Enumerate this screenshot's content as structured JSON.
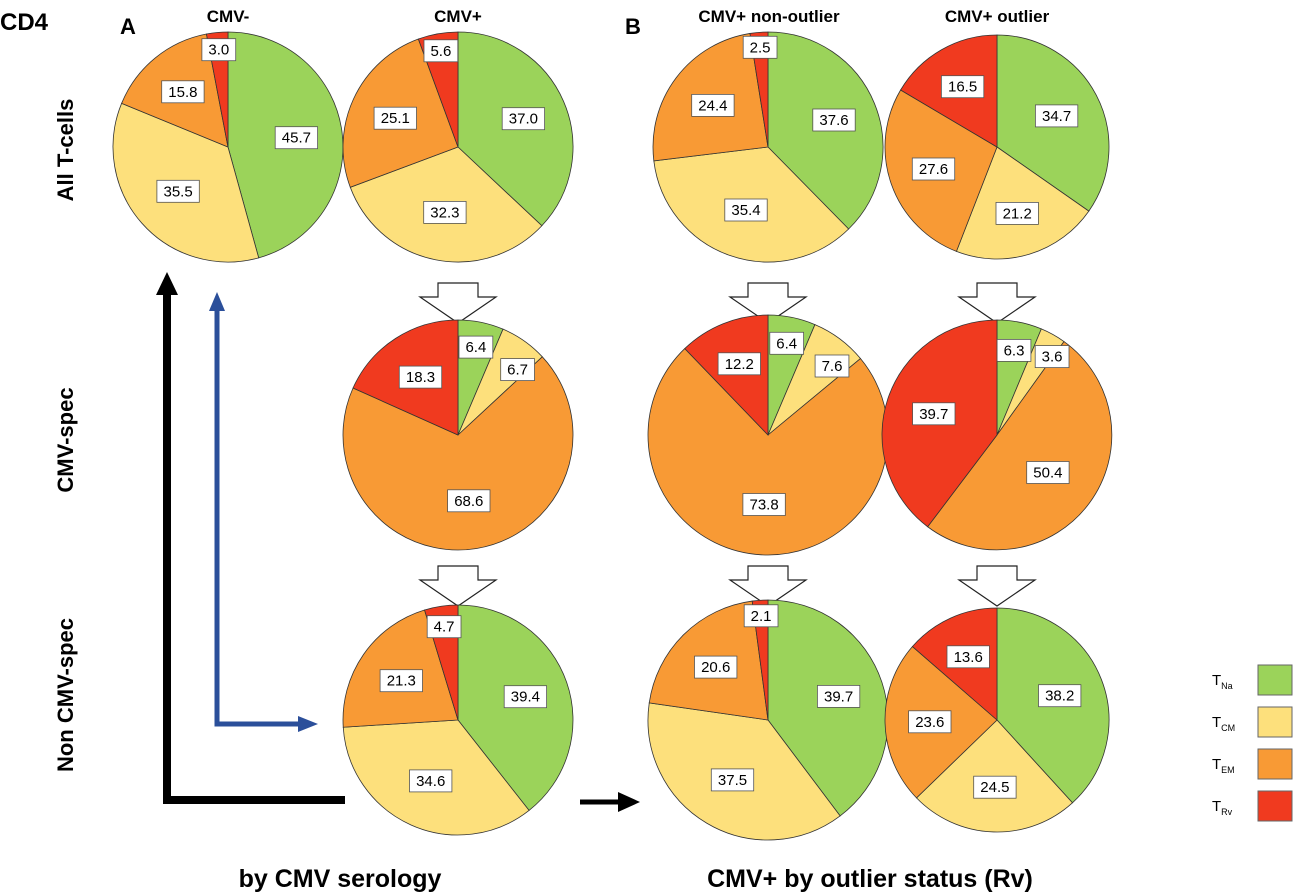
{
  "figure": {
    "corner_label": "CD4",
    "panel_a": "A",
    "panel_b": "B",
    "col_titles": [
      "CMV-",
      "CMV+",
      "CMV+ non-outlier",
      "CMV+ outlier"
    ],
    "row_titles": [
      "All T-cells",
      "CMV-spec",
      "Non CMV-spec"
    ],
    "bottom_left": "by CMV serology",
    "bottom_right": "CMV+ by outlier status  (Rv)"
  },
  "colors": {
    "TNa": "#9bd35a",
    "TCM": "#fde07c",
    "TEM": "#f89a35",
    "TRv": "#f03a1f",
    "dark_arrow": "#000000",
    "blue_arrow": "#2b4f9a"
  },
  "legend": [
    {
      "main": "T",
      "sub": "Na",
      "color_key": "TNa"
    },
    {
      "main": "T",
      "sub": "CM",
      "color_key": "TCM"
    },
    {
      "main": "T",
      "sub": "EM",
      "color_key": "TEM"
    },
    {
      "main": "T",
      "sub": "Rv",
      "color_key": "TRv"
    }
  ],
  "chart_data": [
    {
      "type": "pie",
      "title": "CMV- / All T-cells",
      "slices": [
        "TNa",
        "TCM",
        "TEM",
        "TRv"
      ],
      "values": [
        45.7,
        35.5,
        15.8,
        3.0
      ]
    },
    {
      "type": "pie",
      "title": "CMV+ / All T-cells",
      "slices": [
        "TNa",
        "TCM",
        "TEM",
        "TRv"
      ],
      "values": [
        37.0,
        32.3,
        25.1,
        5.6
      ]
    },
    {
      "type": "pie",
      "title": "CMV+ non-outlier / All T-cells",
      "slices": [
        "TNa",
        "TCM",
        "TEM",
        "TRv"
      ],
      "values": [
        37.6,
        35.4,
        24.4,
        2.5
      ]
    },
    {
      "type": "pie",
      "title": "CMV+ outlier / All T-cells",
      "slices": [
        "TNa",
        "TCM",
        "TEM",
        "TRv"
      ],
      "values": [
        34.7,
        21.2,
        27.6,
        16.5
      ]
    },
    {
      "type": "pie",
      "title": "CMV+ / CMV-spec",
      "slices": [
        "TNa",
        "TCM",
        "TEM",
        "TRv"
      ],
      "values": [
        6.4,
        6.7,
        68.6,
        18.3
      ]
    },
    {
      "type": "pie",
      "title": "CMV+ non-outlier / CMV-spec",
      "slices": [
        "TNa",
        "TCM",
        "TEM",
        "TRv"
      ],
      "values": [
        6.4,
        7.6,
        73.8,
        12.2
      ]
    },
    {
      "type": "pie",
      "title": "CMV+ outlier / CMV-spec",
      "slices": [
        "TNa",
        "TCM",
        "TEM",
        "TRv"
      ],
      "values": [
        6.3,
        3.6,
        50.4,
        39.7
      ]
    },
    {
      "type": "pie",
      "title": "CMV+ / Non CMV-spec",
      "slices": [
        "TNa",
        "TCM",
        "TEM",
        "TRv"
      ],
      "values": [
        39.4,
        34.6,
        21.3,
        4.7
      ]
    },
    {
      "type": "pie",
      "title": "CMV+ non-outlier / Non CMV-spec",
      "slices": [
        "TNa",
        "TCM",
        "TEM",
        "TRv"
      ],
      "values": [
        39.7,
        37.5,
        20.6,
        2.1
      ]
    },
    {
      "type": "pie",
      "title": "CMV+ outlier / Non CMV-spec",
      "slices": [
        "TNa",
        "TCM",
        "TEM",
        "TRv"
      ],
      "values": [
        38.2,
        24.5,
        23.6,
        13.6
      ]
    }
  ]
}
